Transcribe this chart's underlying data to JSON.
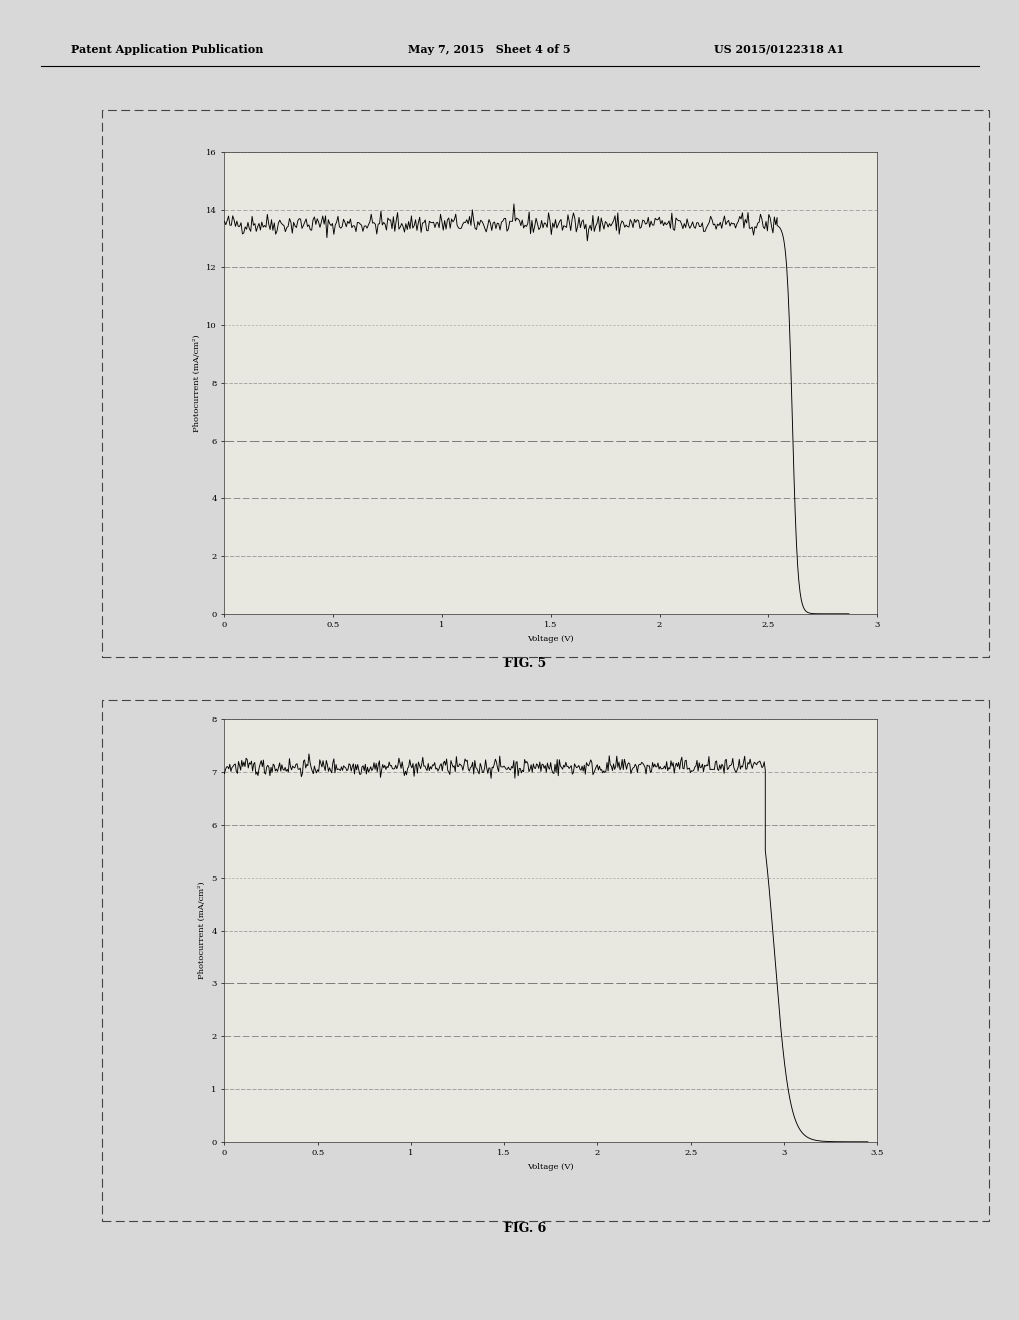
{
  "header_left": "Patent Application Publication",
  "header_mid": "May 7, 2015   Sheet 4 of 5",
  "header_right": "US 2015/0122318 A1",
  "fig5_title": "FIG. 5",
  "fig5_ylabel": "Photocurrent (mA/cm²)",
  "fig5_xlabel": "Voltage (V)",
  "fig5_xlim": [
    0,
    3.0
  ],
  "fig5_ylim": [
    0,
    16
  ],
  "fig5_xticks": [
    0,
    0.5,
    1.0,
    1.5,
    2.0,
    2.5,
    3.0
  ],
  "fig5_xticklabels": [
    "0",
    "0.5",
    "1",
    "1.5",
    "2",
    "2.5",
    "3"
  ],
  "fig5_yticks": [
    0,
    2,
    4,
    6,
    8,
    10,
    12,
    14,
    16
  ],
  "fig5_flat_current": 13.5,
  "fig5_voc": 2.62,
  "fig5_noise_amp": 0.18,
  "fig5_drop_steepness": 80,
  "fig6_title": "FIG. 6",
  "fig6_ylabel": "Photocurrent (mA/cm²)",
  "fig6_xlabel": "Voltage (V)",
  "fig6_xlim": [
    0,
    3.5
  ],
  "fig6_ylim": [
    0,
    8
  ],
  "fig6_xticks": [
    0,
    0.5,
    1.0,
    1.5,
    2.0,
    2.5,
    3.0,
    3.5
  ],
  "fig6_xticklabels": [
    "0",
    "0.5",
    "1",
    "1.5",
    "2",
    "2.5",
    "3",
    "3.5"
  ],
  "fig6_yticks": [
    0,
    1,
    2,
    3,
    4,
    5,
    6,
    7,
    8
  ],
  "fig6_flat_current": 7.1,
  "fig6_voc": 3.0,
  "fig6_noise_amp": 0.08,
  "fig6_drop_steepness": 25,
  "line_color": "#000000",
  "bg_color": "#d8d8d8",
  "plot_bg": "#e8e8e0",
  "grid_color": "#555555",
  "border_color": "#333333",
  "header_fontsize": 8,
  "axis_label_fontsize": 6,
  "tick_fontsize": 6,
  "fig_label_fontsize": 9
}
